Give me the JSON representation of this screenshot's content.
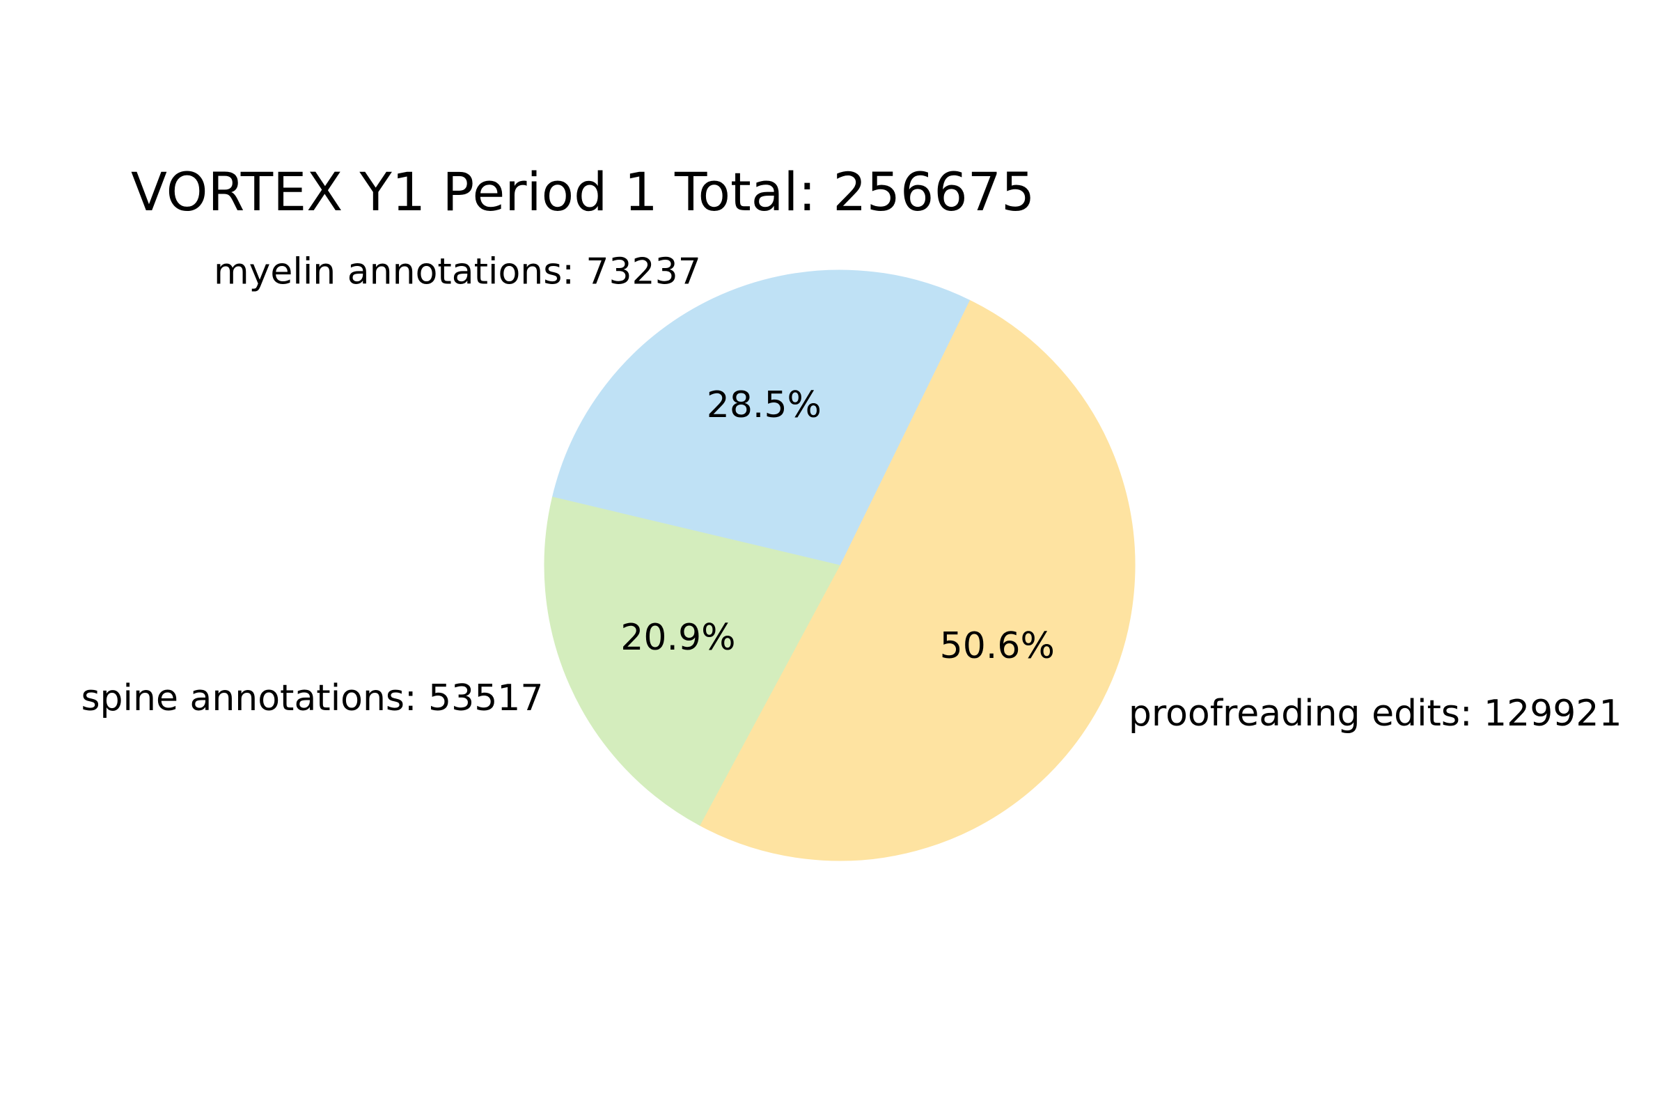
{
  "chart_data": {
    "type": "pie",
    "title": "VORTEX Y1 Period 1 Total: 256675",
    "start_angle_deg": 241.7,
    "direction": "counterclockwise",
    "slices": [
      {
        "name": "proofreading edits",
        "value": 129921,
        "label": "proofreading edits: 129921",
        "pct_label": "50.6%",
        "color": "#fee3a1"
      },
      {
        "name": "myelin annotations",
        "value": 73237,
        "label": "myelin annotations: 73237",
        "pct_label": "28.5%",
        "color": "#bfe1f5"
      },
      {
        "name": "spine annotations",
        "value": 53517,
        "label": "spine annotations: 53517",
        "pct_label": "20.9%",
        "color": "#d4edbd"
      }
    ]
  }
}
